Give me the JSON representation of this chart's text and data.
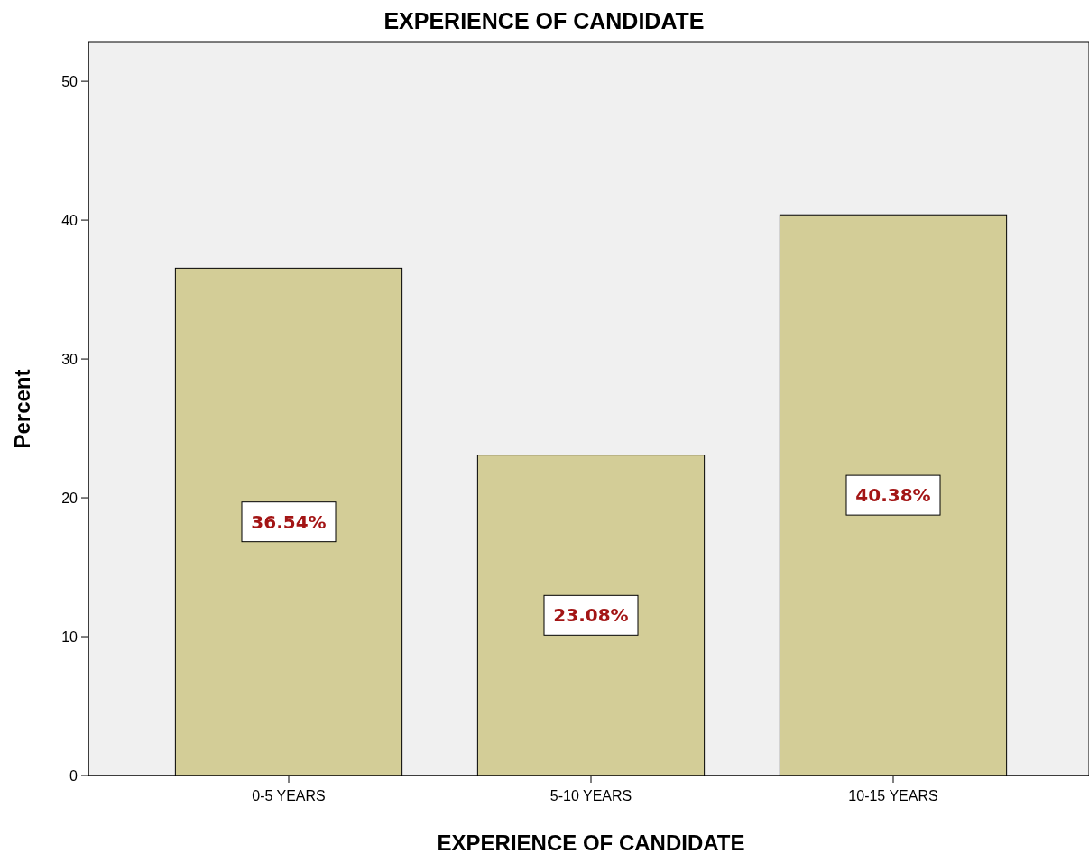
{
  "chart_data": {
    "type": "bar",
    "title": "EXPERIENCE OF CANDIDATE",
    "xlabel": "EXPERIENCE OF CANDIDATE",
    "ylabel": "Percent",
    "categories": [
      "0-5 YEARS",
      "5-10 YEARS",
      "10-15 YEARS"
    ],
    "values": [
      36.54,
      23.08,
      40.38
    ],
    "color": "#d3cd97",
    "value_labels": [
      "36.54%",
      "23.08%",
      "40.38%"
    ],
    "ylim": [
      0,
      52.8
    ],
    "yticks": [
      0,
      10,
      20,
      30,
      40,
      50
    ],
    "grid": false
  }
}
